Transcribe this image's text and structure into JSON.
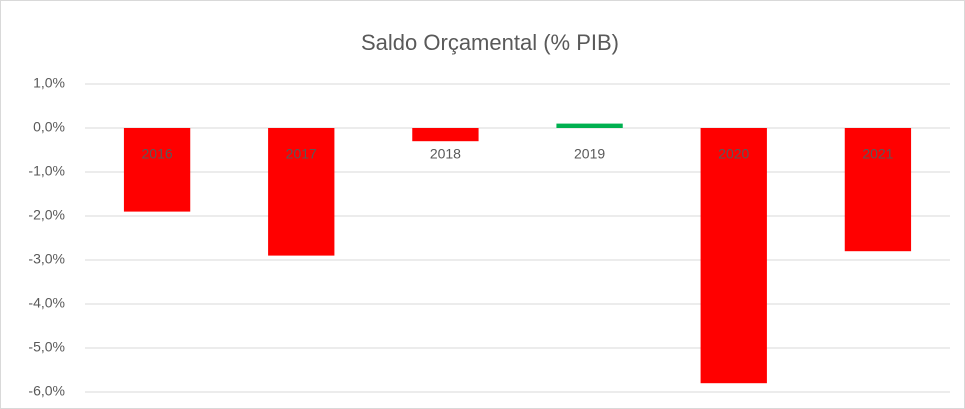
{
  "chart_data": {
    "type": "bar",
    "title": "Saldo Orçamental (% PIB)",
    "categories": [
      "2016",
      "2017",
      "2018",
      "2019",
      "2020",
      "2021"
    ],
    "values": [
      -1.9,
      -2.9,
      -0.3,
      0.1,
      -5.8,
      -2.8
    ],
    "colors": [
      "#ff0000",
      "#ff0000",
      "#ff0000",
      "#00b050",
      "#ff0000",
      "#ff0000"
    ],
    "ylim": [
      -6,
      1
    ],
    "yticks": [
      {
        "value": 1,
        "label": "1,0%"
      },
      {
        "value": 0,
        "label": "0,0%"
      },
      {
        "value": -1,
        "label": "-1,0%"
      },
      {
        "value": -2,
        "label": "-2,0%"
      },
      {
        "value": -3,
        "label": "-3,0%"
      },
      {
        "value": -4,
        "label": "-4,0%"
      },
      {
        "value": -5,
        "label": "-5,0%"
      },
      {
        "value": -6,
        "label": "-6,0%"
      }
    ],
    "grid": true
  }
}
